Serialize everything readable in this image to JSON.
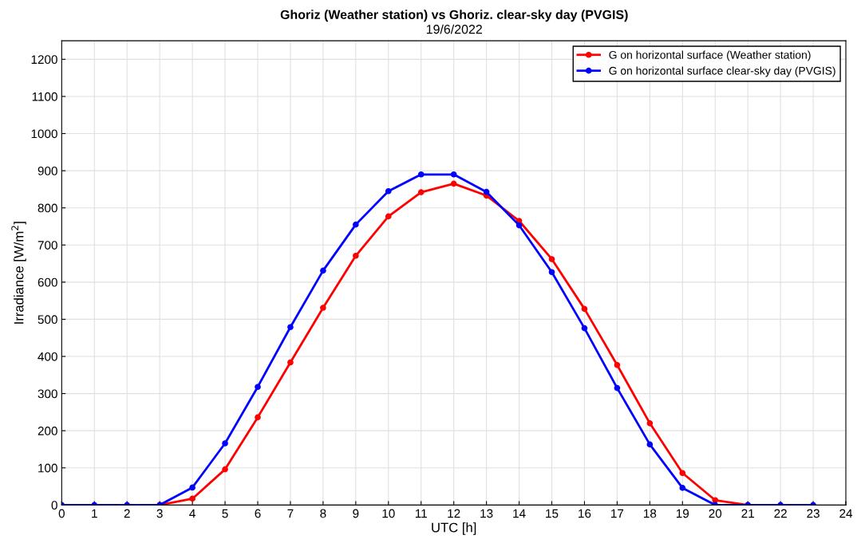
{
  "chart_data": {
    "type": "line",
    "title": "Ghoriz (Weather station) vs Ghoriz. clear-sky day (PVGIS)",
    "subtitle": "19/6/2022",
    "xlabel": "UTC [h]",
    "ylabel": "Irradiance [W/m$^{2}$]",
    "x": [
      0,
      1,
      2,
      3,
      4,
      5,
      6,
      7,
      8,
      9,
      10,
      11,
      12,
      13,
      14,
      15,
      16,
      17,
      18,
      19,
      20,
      21,
      22,
      23
    ],
    "series": [
      {
        "name": "G on horizontal surface (Weather station)",
        "color": "#ff0000",
        "values": [
          null,
          null,
          null,
          0,
          17,
          96,
          236,
          384,
          531,
          671,
          777,
          842,
          865,
          833,
          765,
          662,
          528,
          377,
          220,
          86,
          13,
          0,
          null,
          null
        ]
      },
      {
        "name": "G on horizontal surface clear-sky day (PVGIS)",
        "color": "#0000ff",
        "values": [
          0,
          0,
          0,
          0,
          47,
          166,
          318,
          479,
          631,
          755,
          845,
          890,
          890,
          843,
          753,
          627,
          476,
          315,
          163,
          46,
          0,
          0,
          0,
          0
        ]
      }
    ],
    "xlim": [
      0,
      24
    ],
    "xticks": [
      0,
      1,
      2,
      3,
      4,
      5,
      6,
      7,
      8,
      9,
      10,
      11,
      12,
      13,
      14,
      15,
      16,
      17,
      18,
      19,
      20,
      21,
      22,
      23,
      24
    ],
    "ylim": [
      0,
      1250
    ],
    "yticks": [
      0,
      100,
      200,
      300,
      400,
      500,
      600,
      700,
      800,
      900,
      1000,
      1100,
      1200
    ],
    "grid": true,
    "legend": "top right",
    "marker": "circle",
    "line_style": "solid"
  }
}
